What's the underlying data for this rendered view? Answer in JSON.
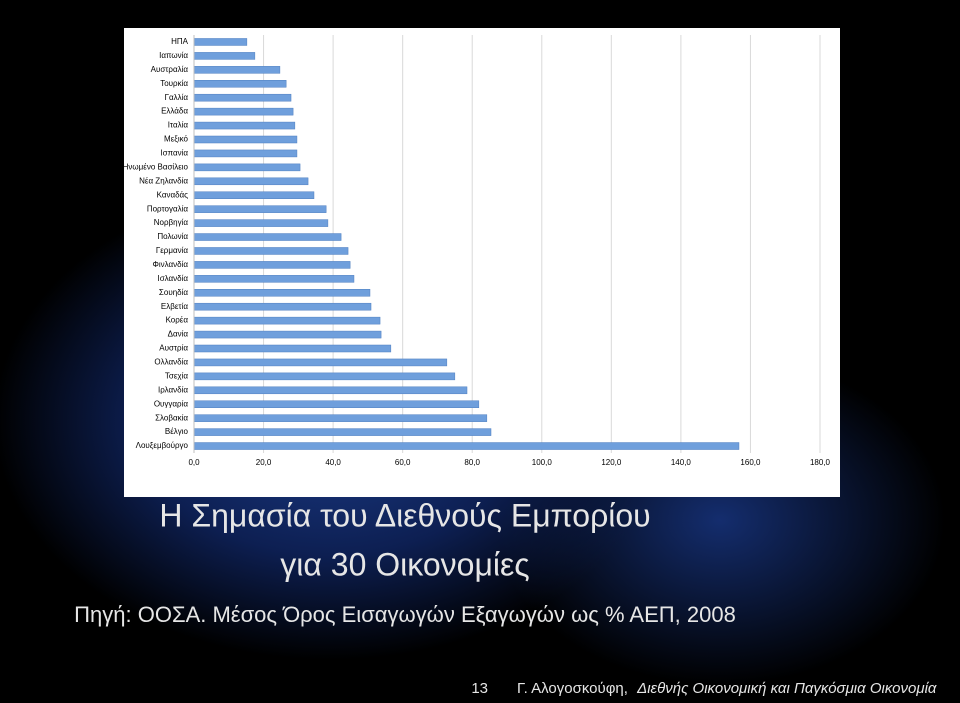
{
  "slide": {
    "title_lines": [
      "Η Σημασία του Διεθνούς Εμπορίου",
      "για 30 Οικονομίες"
    ],
    "subtitle": "Πηγή: ΟΟΣΑ. Μέσος Όρος Εισαγωγών Εξαγωγών ως % ΑΕΠ, 2008",
    "page_number": "13",
    "footer_author": "Γ. Αλογοσκούφη,",
    "footer_book": "Διεθνής Οικονομική και Παγκόσμια Οικονομία"
  },
  "chart_data": {
    "type": "barh",
    "categories": [
      "ΗΠΑ",
      "Ιαπωνία",
      "Αυστραλία",
      "Τουρκία",
      "Γαλλία",
      "Ελλάδα",
      "Ιταλία",
      "Μεξικό",
      "Ισπανία",
      "Ηνωμένο Βασίλειο",
      "Νέα Ζηλανδία",
      "Καναδάς",
      "Πορτογαλία",
      "Νορβηγία",
      "Πολωνία",
      "Γερμανία",
      "Φινλανδία",
      "Ισλανδία",
      "Σουηδία",
      "Ελβετία",
      "Κορέα",
      "Δανία",
      "Αυστρία",
      "Ολλανδία",
      "Τσεχία",
      "Ιρλανδία",
      "Ουγγαρία",
      "Σλοβακία",
      "Βέλγιο",
      "Λουξεμβούργο"
    ],
    "values": [
      15.2,
      17.5,
      24.7,
      26.5,
      27.9,
      28.5,
      29.0,
      29.6,
      29.6,
      30.5,
      32.8,
      34.5,
      38.0,
      38.5,
      42.3,
      44.3,
      44.9,
      46.0,
      50.6,
      50.9,
      53.5,
      53.8,
      56.6,
      72.7,
      75.0,
      78.5,
      81.9,
      84.2,
      85.4,
      156.7
    ],
    "color": "#6f9fdc",
    "xlim": [
      0,
      180
    ],
    "xticks": [
      {
        "value": 0,
        "label": "0,0"
      },
      {
        "value": 20,
        "label": "20,0"
      },
      {
        "value": 40,
        "label": "40,0"
      },
      {
        "value": 60,
        "label": "60,0"
      },
      {
        "value": 80,
        "label": "80,0"
      },
      {
        "value": 100,
        "label": "100,0"
      },
      {
        "value": 120,
        "label": "120,0"
      },
      {
        "value": 140,
        "label": "140,0"
      },
      {
        "value": 160,
        "label": "160,0"
      },
      {
        "value": 180,
        "label": "180,0"
      }
    ],
    "grid": true
  }
}
